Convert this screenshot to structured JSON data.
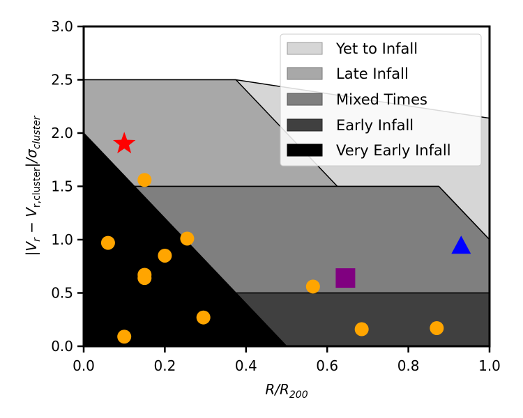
{
  "chart_data": {
    "type": "scatter",
    "xlabel": "R/R",
    "xlabel_sub": "200",
    "ylabel_parts": [
      "|V",
      "r",
      " − V",
      "r,cluster",
      "|/σ",
      "cluster"
    ],
    "xlim": [
      0.0,
      1.0
    ],
    "ylim": [
      0.0,
      3.0
    ],
    "xticks": [
      0.0,
      0.2,
      0.4,
      0.6,
      0.8,
      1.0
    ],
    "xtick_labels": [
      "0.0",
      "0.2",
      "0.4",
      "0.6",
      "0.8",
      "1.0"
    ],
    "yticks": [
      0.0,
      0.5,
      1.0,
      1.5,
      2.0,
      2.5,
      3.0
    ],
    "ytick_labels": [
      "0.0",
      "0.5",
      "1.0",
      "1.5",
      "2.0",
      "2.5",
      "3.0"
    ],
    "legend_position": "top-right",
    "regions": [
      {
        "name": "Yet to Infall",
        "color": "#d6d6d6",
        "polygon": [
          [
            0,
            2.5
          ],
          [
            0.375,
            2.5
          ],
          [
            1.0,
            2.14
          ],
          [
            1.0,
            1.0
          ],
          [
            0.875,
            1.5
          ],
          [
            0.625,
            1.5
          ],
          [
            0.125,
            2.5
          ]
        ]
      },
      {
        "name": "Late Infall",
        "color": "#a8a8a8",
        "polygon": [
          [
            0,
            2.0
          ],
          [
            0,
            2.5
          ],
          [
            0.375,
            2.5
          ],
          [
            0.625,
            1.5
          ],
          [
            0.125,
            1.5
          ]
        ]
      },
      {
        "name": "Mixed Times",
        "color": "#7f7f7f",
        "polygon": [
          [
            0.125,
            1.5
          ],
          [
            0.875,
            1.5
          ],
          [
            1.0,
            1.0
          ],
          [
            1.0,
            0.5
          ],
          [
            0.375,
            0.5
          ]
        ]
      },
      {
        "name": "Early Infall",
        "color": "#404040",
        "polygon": [
          [
            0.375,
            0.5
          ],
          [
            1.0,
            0.5
          ],
          [
            1.0,
            0.0
          ],
          [
            0.5,
            0.0
          ]
        ]
      },
      {
        "name": "Very Early Infall",
        "color": "#000000",
        "polygon": [
          [
            0,
            0
          ],
          [
            0,
            2.0
          ],
          [
            0.5,
            0.0
          ]
        ]
      }
    ],
    "legend": [
      {
        "label": "Yet to Infall",
        "color": "#d6d6d6"
      },
      {
        "label": "Late Infall",
        "color": "#a8a8a8"
      },
      {
        "label": "Mixed Times",
        "color": "#7f7f7f"
      },
      {
        "label": "Early Infall",
        "color": "#404040"
      },
      {
        "label": "Very Early Infall",
        "color": "#000000"
      }
    ],
    "series": [
      {
        "name": "orange circles",
        "marker": "circle",
        "color": "#ffa500",
        "points": [
          [
            0.06,
            0.97
          ],
          [
            0.1,
            0.09
          ],
          [
            0.15,
            1.56
          ],
          [
            0.15,
            0.67
          ],
          [
            0.15,
            0.64
          ],
          [
            0.2,
            0.85
          ],
          [
            0.255,
            1.01
          ],
          [
            0.295,
            0.27
          ],
          [
            0.565,
            0.56
          ],
          [
            0.685,
            0.16
          ],
          [
            0.87,
            0.17
          ]
        ]
      },
      {
        "name": "red star",
        "marker": "star",
        "color": "#ff0000",
        "points": [
          [
            0.1,
            1.9
          ]
        ]
      },
      {
        "name": "purple square",
        "marker": "square",
        "color": "#800080",
        "points": [
          [
            0.645,
            0.64
          ]
        ]
      },
      {
        "name": "blue triangle",
        "marker": "triangle",
        "color": "#0000ff",
        "points": [
          [
            0.93,
            0.94
          ]
        ]
      }
    ]
  }
}
